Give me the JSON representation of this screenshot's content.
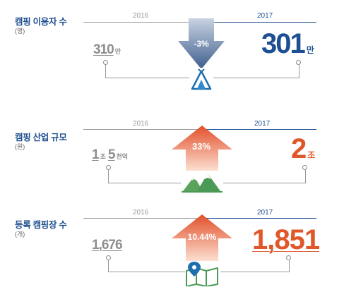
{
  "sections": [
    {
      "label": "캠핑 이용자 수",
      "unit": "(명)",
      "year_old": "2016",
      "year_new": "2017",
      "value_old": "310",
      "value_old_unit": "만",
      "value_new": "301",
      "value_new_unit": "만",
      "change": "-3%",
      "direction": "down",
      "icon": "tent-icon"
    },
    {
      "label": "캠핑 산업 규모",
      "unit": "(원)",
      "year_old": "2016",
      "year_new": "2017",
      "value_old_part1": "1",
      "value_old_unit1": "조",
      "value_old_part2": "5",
      "value_old_unit2": "천억",
      "value_new": "2",
      "value_new_unit": "조",
      "change": "33%",
      "direction": "up",
      "icon": "mountains-icon"
    },
    {
      "label": "등록 캠핑장 수",
      "unit": "(개)",
      "year_old": "2016",
      "year_new": "2017",
      "value_old": "1,676",
      "value_new": "1,851",
      "change": "10.44%",
      "direction": "up",
      "icon": "map-pin-icon"
    }
  ],
  "colors": {
    "title_blue": "#1e4f8f",
    "value_blue": "#1d4f93",
    "value_orange": "#e0582a",
    "gray": "#8e8e8e",
    "arrow_down_blue": "#4f6f9c",
    "arrow_up_orange": "#e35a2b",
    "icon_green": "#4a9a55"
  }
}
